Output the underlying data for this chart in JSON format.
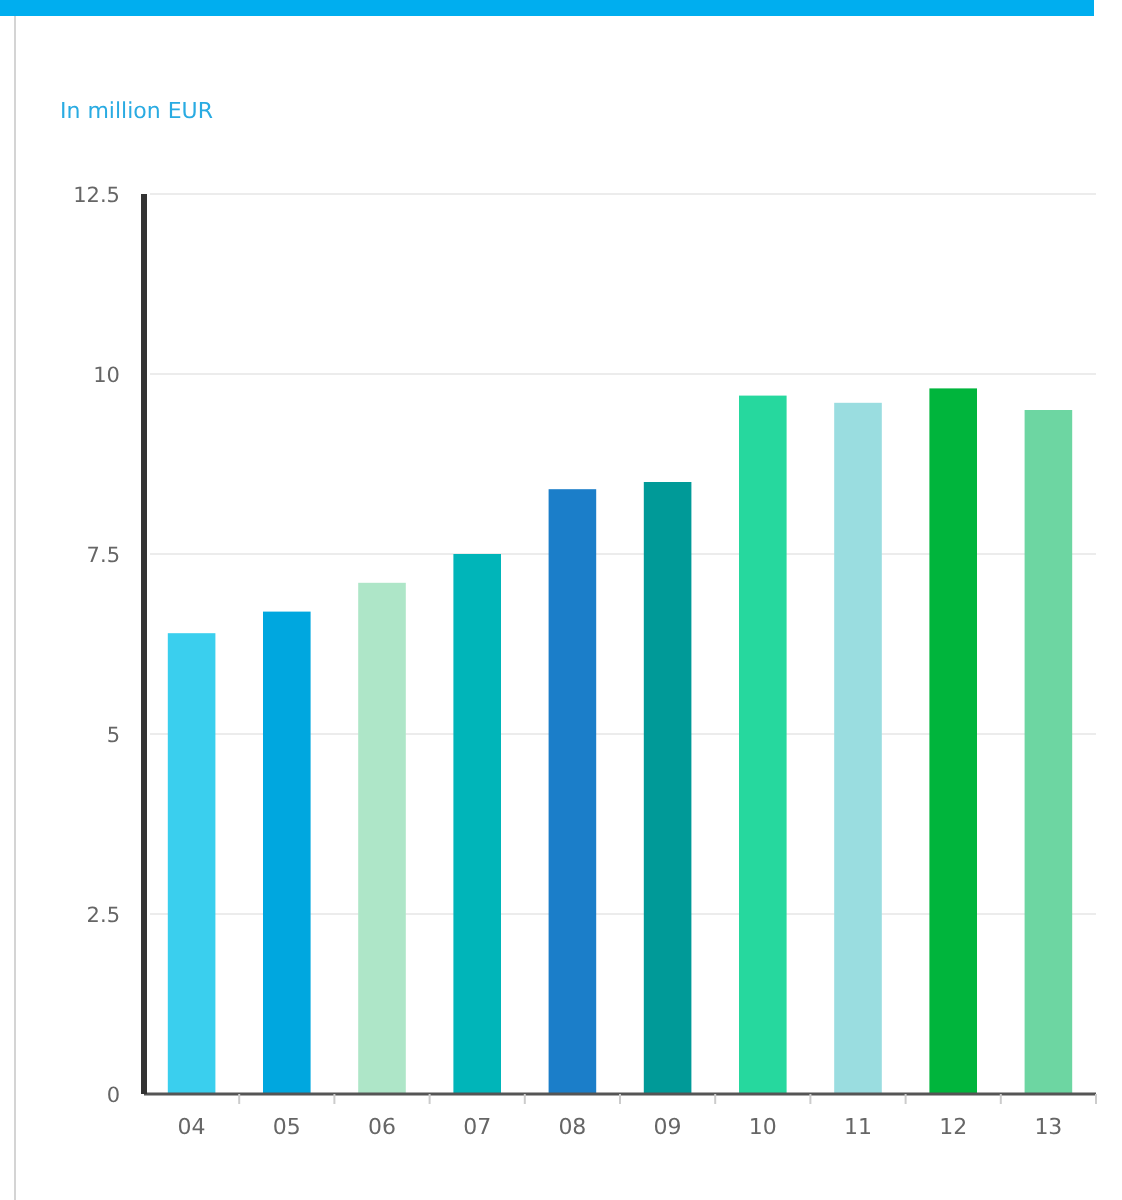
{
  "chart_data": {
    "type": "bar",
    "ylabel": "In million EUR",
    "categories": [
      "04",
      "05",
      "06",
      "07",
      "08",
      "09",
      "10",
      "11",
      "12",
      "13"
    ],
    "values": [
      6.4,
      6.7,
      7.1,
      7.5,
      8.4,
      8.5,
      9.7,
      9.6,
      9.8,
      9.5
    ],
    "colors": [
      "#3acfee",
      "#00a7df",
      "#aee6c8",
      "#00b5b9",
      "#1b7ec9",
      "#009a98",
      "#26d89e",
      "#9adde0",
      "#00b53c",
      "#6dd6a2"
    ],
    "ylim": [
      0,
      12.5
    ],
    "yticks": [
      0,
      2.5,
      5,
      7.5,
      10,
      12.5
    ],
    "grid": "y"
  }
}
